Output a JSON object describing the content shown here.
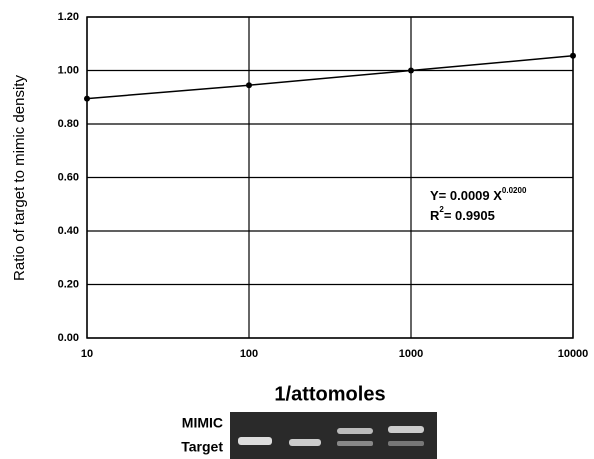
{
  "chart_data": {
    "type": "line",
    "y_label": "Ratio of target to mimic density",
    "x_label": "1/attomoles",
    "x": [
      10,
      100,
      1000,
      10000
    ],
    "series": [
      {
        "color": "#000000",
        "values": [
          0.895,
          0.945,
          1.0,
          1.055
        ]
      }
    ],
    "xlim": [
      10,
      10000
    ],
    "xticks": [
      10,
      100,
      1000,
      10000
    ],
    "x_log": true,
    "ylim": [
      0,
      1.2
    ],
    "yticks": [
      {
        "value": 0,
        "label": "0.00"
      },
      {
        "value": 0.2,
        "label": "0.20"
      },
      {
        "value": 0.4,
        "label": "0.40"
      },
      {
        "value": 0.6,
        "label": "0.60"
      },
      {
        "value": 0.8,
        "label": "0.80"
      },
      {
        "value": 1.0,
        "label": "1.00"
      },
      {
        "value": 1.2,
        "label": "1.20"
      }
    ],
    "grid": true,
    "equation": "Y= 0.0009 X",
    "equation_exponent": "0.0200",
    "r_squared_label": "R",
    "r_squared_exponent": "2",
    "r_squared_value": "= 0.9905",
    "gel_labels": [
      "MIMIC",
      "Target"
    ]
  }
}
